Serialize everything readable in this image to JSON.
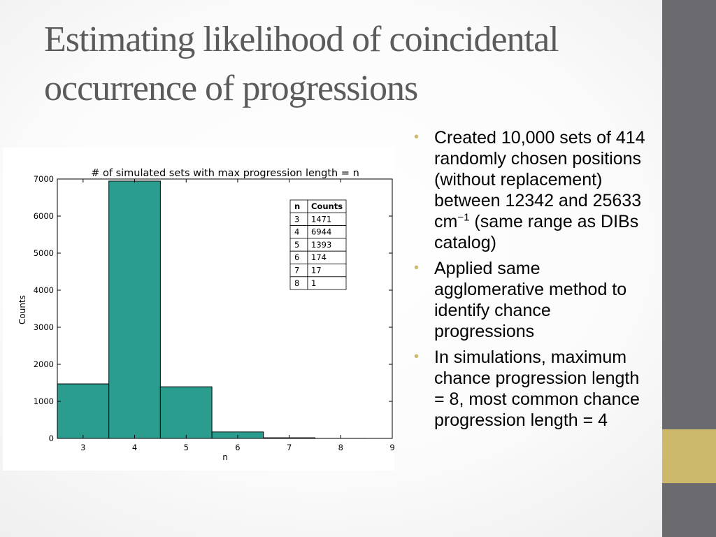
{
  "slide": {
    "title_line1": "Estimating likelihood of coincidental",
    "title_line2": "occurrence of progressions",
    "colors": {
      "sidebar": "#6b6a6e",
      "sidebar_accent": "#cdb96a",
      "bullet": "#cdb96a",
      "bar": "#2a9d8f"
    }
  },
  "bullets": [
    {
      "text_before": "Created 10,000 sets of 414 randomly chosen positions (without replacement) between 12342 and 25633 cm",
      "sup": "−1",
      "text_after": " (same range as DIBs catalog)"
    },
    {
      "text_before": "Applied same agglomerative method to identify chance progressions",
      "sup": "",
      "text_after": ""
    },
    {
      "text_before": "In simulations, maximum chance progression length = 8, most common chance progression length = 4",
      "sup": "",
      "text_after": ""
    }
  ],
  "chart_data": {
    "type": "bar",
    "title": "# of simulated sets with max progression length = n",
    "xlabel": "n",
    "ylabel": "Counts",
    "categories": [
      3,
      4,
      5,
      6,
      7,
      8
    ],
    "values": [
      1471,
      6944,
      1393,
      174,
      17,
      1
    ],
    "xlim": [
      2.5,
      9
    ],
    "ylim": [
      0,
      7000
    ],
    "xticks": [
      3,
      4,
      5,
      6,
      7,
      8,
      9
    ],
    "yticks": [
      0,
      1000,
      2000,
      3000,
      4000,
      5000,
      6000,
      7000
    ],
    "grid": false,
    "table": {
      "headers": [
        "n",
        "Counts"
      ],
      "rows": [
        [
          "3",
          "1471"
        ],
        [
          "4",
          "6944"
        ],
        [
          "5",
          "1393"
        ],
        [
          "6",
          "174"
        ],
        [
          "7",
          "17"
        ],
        [
          "8",
          "1"
        ]
      ],
      "placement": "top-right"
    }
  }
}
